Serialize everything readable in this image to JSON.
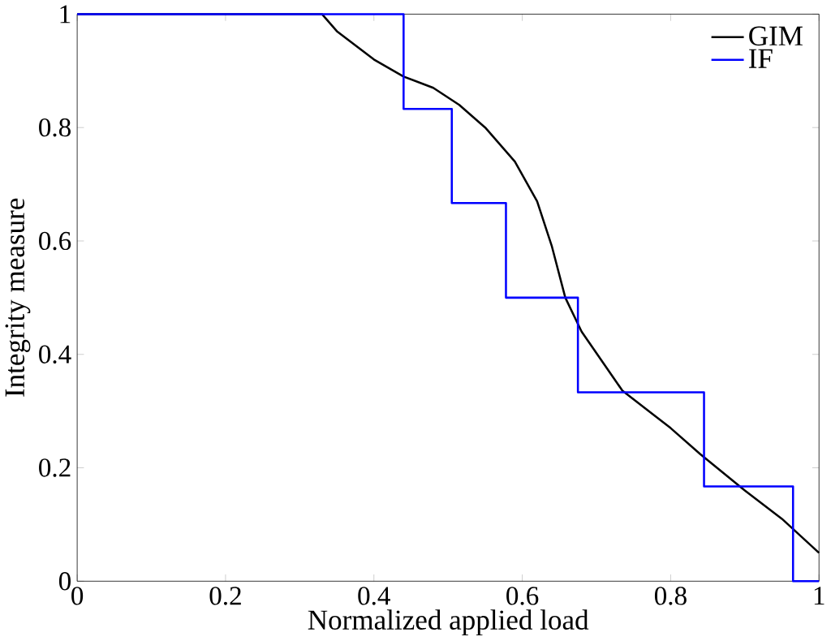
{
  "chart_data": {
    "type": "line",
    "xlabel": "Normalized applied load",
    "ylabel": "Integrity measure",
    "xlim": [
      0,
      1
    ],
    "ylim": [
      0,
      1
    ],
    "xticks": [
      0,
      0.2,
      0.4,
      0.6,
      0.8,
      1
    ],
    "yticks": [
      0,
      0.2,
      0.4,
      0.6,
      0.8,
      1
    ],
    "legend": "top right",
    "grid": false,
    "series": [
      {
        "name": "GIM",
        "color": "#000000",
        "x": [
          0,
          0.33,
          0.35,
          0.4,
          0.44,
          0.48,
          0.515,
          0.55,
          0.59,
          0.62,
          0.64,
          0.658,
          0.68,
          0.735,
          0.8,
          0.84,
          0.9,
          0.95,
          1
        ],
        "values": [
          1,
          1,
          0.97,
          0.92,
          0.89,
          0.87,
          0.84,
          0.8,
          0.74,
          0.67,
          0.59,
          0.5,
          0.44,
          0.336,
          0.27,
          0.224,
          0.16,
          0.11,
          0.05
        ]
      },
      {
        "name": "IF",
        "color": "#0000ff",
        "type": "step",
        "x": [
          0,
          0.44,
          0.505,
          0.578,
          0.675,
          0.845,
          0.965,
          1
        ],
        "values": [
          1,
          0.833,
          0.667,
          0.5,
          0.333,
          0.167,
          0,
          0
        ]
      }
    ]
  }
}
